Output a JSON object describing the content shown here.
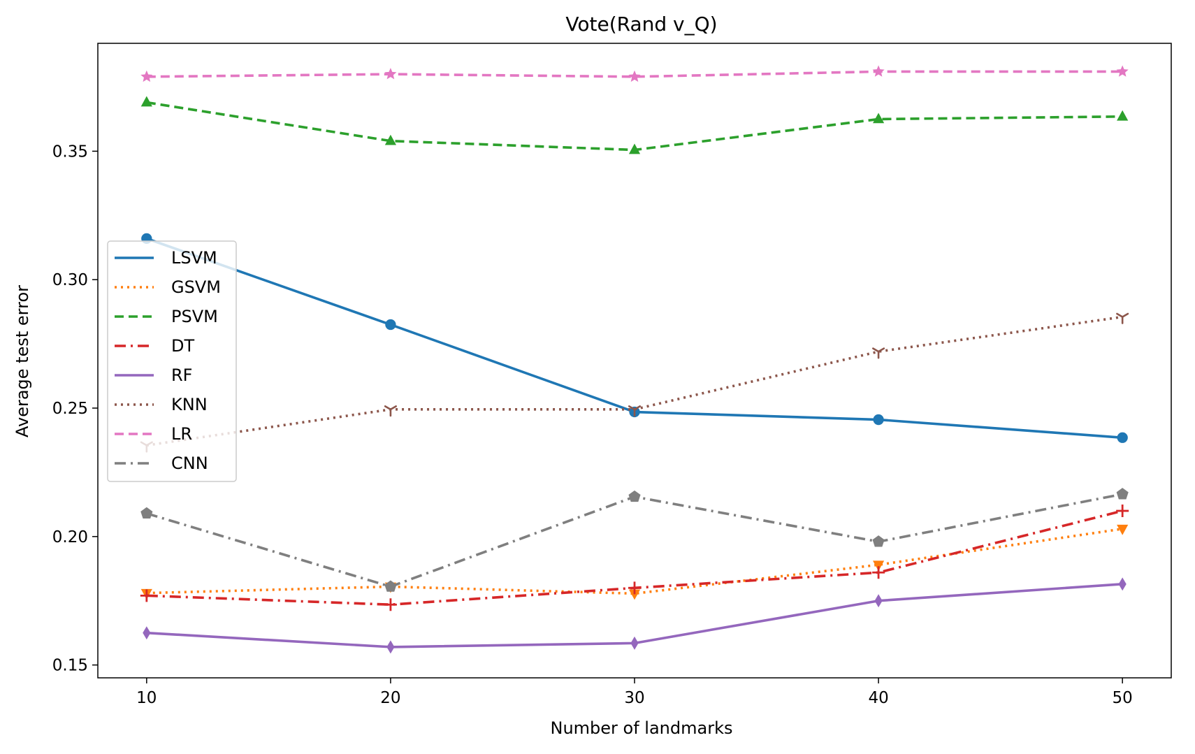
{
  "chart_data": {
    "type": "line",
    "title": "Vote(Rand v_Q)",
    "xlabel": "Number of landmarks",
    "ylabel": "Average test error",
    "x": [
      10,
      20,
      30,
      40,
      50
    ],
    "xlim": [
      8,
      52
    ],
    "ylim": [
      0.145,
      0.392
    ],
    "xticks": [
      10,
      20,
      30,
      40,
      50
    ],
    "yticks": [
      0.15,
      0.2,
      0.25,
      0.3,
      0.35
    ],
    "xtick_labels": [
      "10",
      "20",
      "30",
      "40",
      "50"
    ],
    "ytick_labels": [
      "0.15",
      "0.20",
      "0.25",
      "0.30",
      "0.35"
    ],
    "grid": false,
    "legend_position": "center-left",
    "series": [
      {
        "name": "LSVM",
        "values": [
          0.316,
          0.2825,
          0.2485,
          0.2455,
          0.2385
        ],
        "color": "#1f77b4",
        "linestyle": "solid",
        "marker": "circle"
      },
      {
        "name": "GSVM",
        "values": [
          0.178,
          0.1805,
          0.1778,
          0.189,
          0.203
        ],
        "color": "#ff7f0e",
        "linestyle": "dotted",
        "marker": "triangle-down"
      },
      {
        "name": "PSVM",
        "values": [
          0.369,
          0.354,
          0.3505,
          0.3625,
          0.3635
        ],
        "color": "#2ca02c",
        "linestyle": "dashed",
        "marker": "triangle-up"
      },
      {
        "name": "DT",
        "values": [
          0.177,
          0.1735,
          0.18,
          0.186,
          0.21
        ],
        "color": "#d62728",
        "linestyle": "dashdot",
        "marker": "plus"
      },
      {
        "name": "RF",
        "values": [
          0.1625,
          0.157,
          0.1585,
          0.175,
          0.1815
        ],
        "color": "#9467bd",
        "linestyle": "solid",
        "marker": "thin-diamond"
      },
      {
        "name": "KNN",
        "values": [
          0.2355,
          0.2495,
          0.2495,
          0.272,
          0.2855
        ],
        "color": "#8c564b",
        "linestyle": "dotted",
        "marker": "tri-down"
      },
      {
        "name": "LR",
        "values": [
          0.379,
          0.38,
          0.379,
          0.381,
          0.381
        ],
        "color": "#e377c2",
        "linestyle": "dashed",
        "marker": "star"
      },
      {
        "name": "CNN",
        "values": [
          0.209,
          0.1805,
          0.2155,
          0.198,
          0.2165
        ],
        "color": "#7f7f7f",
        "linestyle": "dashdot",
        "marker": "pentagon"
      }
    ]
  }
}
